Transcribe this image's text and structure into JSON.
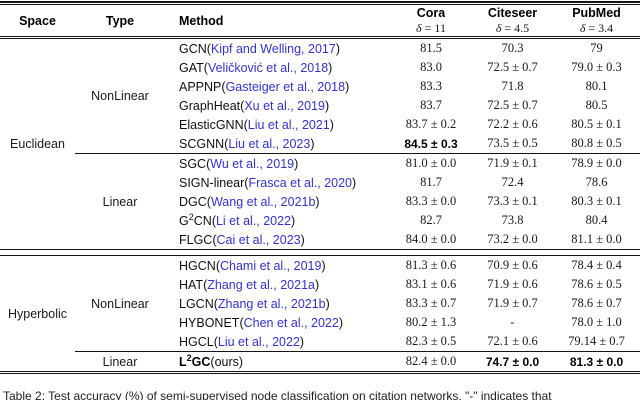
{
  "colors": {
    "citation_blue": "#3333cc"
  },
  "header": {
    "space": "Space",
    "type": "Type",
    "method": "Method",
    "datasets": [
      {
        "name": "Cora",
        "delta": "δ = 11"
      },
      {
        "name": "Citeseer",
        "delta": "δ = 4.5"
      },
      {
        "name": "PubMed",
        "delta": "δ = 3.4"
      }
    ]
  },
  "groups": [
    {
      "space": "Euclidean",
      "subgroups": [
        {
          "type": "NonLinear",
          "rows": [
            {
              "pre": "GCN",
              "sup": "",
              "post": "",
              "cite": "Kipf and Welling, 2017",
              "cite_link": true,
              "bold_method": false,
              "vals": [
                {
                  "t": "81.5",
                  "b": false
                },
                {
                  "t": "70.3",
                  "b": false
                },
                {
                  "t": "79",
                  "b": false
                }
              ]
            },
            {
              "pre": "GAT",
              "sup": "",
              "post": "",
              "cite": "Veličković et al., 2018",
              "cite_link": true,
              "bold_method": false,
              "vals": [
                {
                  "t": "83.0",
                  "b": false
                },
                {
                  "t": "72.5 ± 0.7",
                  "b": false
                },
                {
                  "t": "79.0 ± 0.3",
                  "b": false
                }
              ]
            },
            {
              "pre": "APPNP",
              "sup": "",
              "post": "",
              "cite": "Gasteiger et al., 2018",
              "cite_link": true,
              "bold_method": false,
              "vals": [
                {
                  "t": "83.3",
                  "b": false
                },
                {
                  "t": "71.8",
                  "b": false
                },
                {
                  "t": "80.1",
                  "b": false
                }
              ]
            },
            {
              "pre": "GraphHeat",
              "sup": "",
              "post": "",
              "cite": "Xu et al., 2019",
              "cite_link": true,
              "bold_method": false,
              "vals": [
                {
                  "t": "83.7",
                  "b": false
                },
                {
                  "t": "72.5 ± 0.7",
                  "b": false
                },
                {
                  "t": "80.5",
                  "b": false
                }
              ]
            },
            {
              "pre": "ElasticGNN",
              "sup": "",
              "post": "",
              "cite": "Liu et al., 2021",
              "cite_link": true,
              "bold_method": false,
              "vals": [
                {
                  "t": "83.7 ± 0.2",
                  "b": false
                },
                {
                  "t": "72.2 ± 0.6",
                  "b": false
                },
                {
                  "t": "80.5 ± 0.1",
                  "b": false
                }
              ]
            },
            {
              "pre": "SCGNN",
              "sup": "",
              "post": "",
              "cite": "Liu et al., 2023",
              "cite_link": true,
              "bold_method": false,
              "vals": [
                {
                  "t": "84.5 ± 0.3",
                  "b": true
                },
                {
                  "t": "73.5 ± 0.5",
                  "b": false
                },
                {
                  "t": "80.8 ± 0.5",
                  "b": false
                }
              ]
            }
          ]
        },
        {
          "type": "Linear",
          "rows": [
            {
              "pre": "SGC",
              "sup": "",
              "post": "",
              "cite": "Wu et al., 2019",
              "cite_link": true,
              "bold_method": false,
              "vals": [
                {
                  "t": "81.0 ± 0.0",
                  "b": false
                },
                {
                  "t": "71.9 ± 0.1",
                  "b": false
                },
                {
                  "t": "78.9 ± 0.0",
                  "b": false
                }
              ]
            },
            {
              "pre": "SIGN-linear",
              "sup": "",
              "post": "",
              "cite": "Frasca et al., 2020",
              "cite_link": true,
              "bold_method": false,
              "vals": [
                {
                  "t": "81.7",
                  "b": false
                },
                {
                  "t": "72.4",
                  "b": false
                },
                {
                  "t": "78.6",
                  "b": false
                }
              ]
            },
            {
              "pre": "DGC",
              "sup": "",
              "post": "",
              "cite": "Wang et al., 2021b",
              "cite_link": true,
              "bold_method": false,
              "vals": [
                {
                  "t": "83.3 ± 0.0",
                  "b": false
                },
                {
                  "t": "73.3 ± 0.1",
                  "b": false
                },
                {
                  "t": "80.3 ± 0.1",
                  "b": false
                }
              ]
            },
            {
              "pre": "G",
              "sup": "2",
              "post": "CN",
              "cite": "Li et al., 2022",
              "cite_link": true,
              "bold_method": false,
              "vals": [
                {
                  "t": "82.7",
                  "b": false
                },
                {
                  "t": "73.8",
                  "b": false
                },
                {
                  "t": "80.4",
                  "b": false
                }
              ]
            },
            {
              "pre": "FLGC",
              "sup": "",
              "post": "",
              "cite": "Cai et al., 2023",
              "cite_link": true,
              "bold_method": false,
              "vals": [
                {
                  "t": "84.0 ± 0.0",
                  "b": false
                },
                {
                  "t": "73.2 ± 0.0",
                  "b": false
                },
                {
                  "t": "81.1 ± 0.0",
                  "b": false
                }
              ]
            }
          ]
        }
      ]
    },
    {
      "space": "Hyperbolic",
      "subgroups": [
        {
          "type": "NonLinear",
          "rows": [
            {
              "pre": "HGCN",
              "sup": "",
              "post": "",
              "cite": "Chami et al., 2019",
              "cite_link": true,
              "bold_method": false,
              "vals": [
                {
                  "t": "81.3 ± 0.6",
                  "b": false
                },
                {
                  "t": "70.9 ± 0.6",
                  "b": false
                },
                {
                  "t": "78.4 ± 0.4",
                  "b": false
                }
              ]
            },
            {
              "pre": "HAT",
              "sup": "",
              "post": "",
              "cite": "Zhang et al., 2021a",
              "cite_link": true,
              "bold_method": false,
              "vals": [
                {
                  "t": "83.1 ± 0.6",
                  "b": false
                },
                {
                  "t": "71.9 ± 0.6",
                  "b": false
                },
                {
                  "t": "78.6 ± 0.5",
                  "b": false
                }
              ]
            },
            {
              "pre": "LGCN",
              "sup": "",
              "post": "",
              "cite": "Zhang et al., 2021b",
              "cite_link": true,
              "bold_method": false,
              "vals": [
                {
                  "t": "83.3 ± 0.7",
                  "b": false
                },
                {
                  "t": "71.9 ± 0.7",
                  "b": false
                },
                {
                  "t": "78.6 ± 0.7",
                  "b": false
                }
              ]
            },
            {
              "pre": "HYBONET",
              "sup": "",
              "post": "",
              "cite": "Chen et al., 2022",
              "cite_link": true,
              "bold_method": false,
              "vals": [
                {
                  "t": "80.2 ± 1.3",
                  "b": false
                },
                {
                  "t": "-",
                  "b": false
                },
                {
                  "t": "78.0 ± 1.0",
                  "b": false
                }
              ]
            },
            {
              "pre": "HGCL",
              "sup": "",
              "post": "",
              "cite": "Liu et al., 2022",
              "cite_link": true,
              "bold_method": false,
              "vals": [
                {
                  "t": "82.3 ± 0.5",
                  "b": false
                },
                {
                  "t": "72.1 ± 0.6",
                  "b": false
                },
                {
                  "t": "79.14 ± 0.7",
                  "b": false
                }
              ]
            }
          ]
        },
        {
          "type": "Linear",
          "rows": [
            {
              "pre": "L",
              "sup": "2",
              "post": "GC",
              "cite": "ours",
              "cite_link": false,
              "bold_method": true,
              "vals": [
                {
                  "t": "82.4 ± 0.0",
                  "b": false
                },
                {
                  "t": "74.7 ± 0.0",
                  "b": true
                },
                {
                  "t": "81.3 ± 0.0",
                  "b": true
                }
              ]
            }
          ]
        }
      ]
    }
  ],
  "caption": "Table 2:  Test accuracy (%) of semi-supervised node classification on citation networks. \"-\" indicates that"
}
